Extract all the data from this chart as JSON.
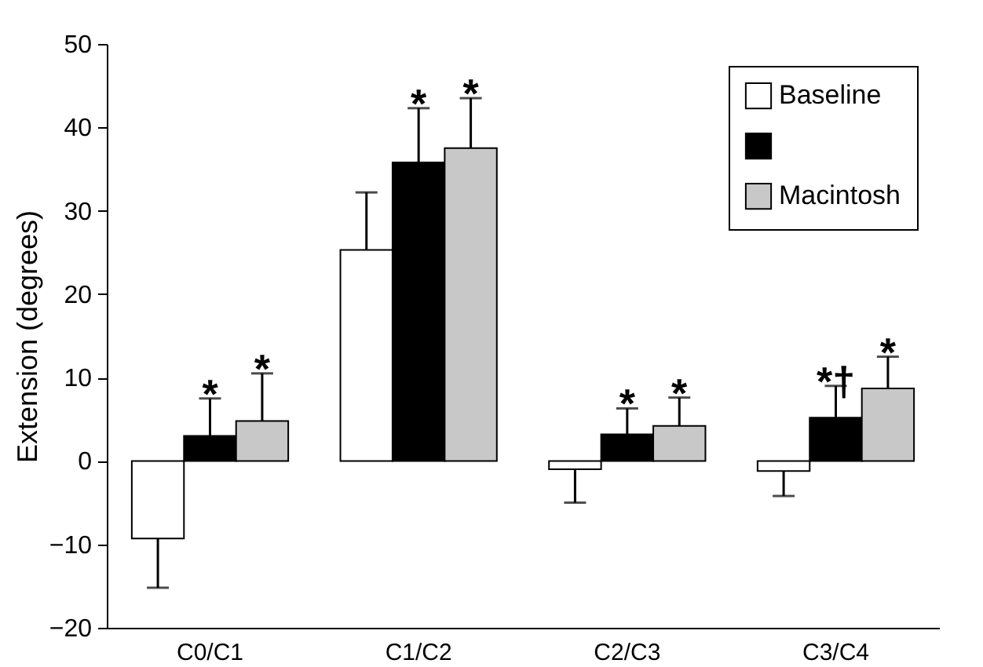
{
  "chart_data": {
    "type": "bar",
    "ylabel": "Extension (degrees)",
    "categories": [
      "C0/C1",
      "C1/C2",
      "C2/C3",
      "C3/C4"
    ],
    "series": [
      {
        "name": "Baseline",
        "color": "#ffffff",
        "values": [
          -9.3,
          25.3,
          -1,
          -1.2
        ],
        "errors": [
          [
            -15.2,
            -9.3
          ],
          [
            25.3,
            32.2
          ],
          [
            -5,
            -1
          ],
          [
            -4.2,
            -1.2
          ]
        ]
      },
      {
        "color": "#000000",
        "values": [
          3,
          35.8,
          3.2,
          5.2
        ],
        "errors": [
          [
            3,
            7.5
          ],
          [
            35.8,
            42.3
          ],
          [
            3.2,
            6.3
          ],
          [
            5.2,
            9
          ]
        ]
      },
      {
        "name": "Macintosh",
        "color": "#c8c8c8",
        "values": [
          4.8,
          37.5,
          4.2,
          8.7
        ],
        "errors": [
          [
            4.8,
            10.5
          ],
          [
            37.5,
            43.5
          ],
          [
            4.2,
            7.6
          ],
          [
            8.7,
            12.5
          ]
        ]
      }
    ],
    "ylim": [
      -20,
      50
    ],
    "yticks": [
      -20,
      -10,
      0,
      10,
      20,
      30,
      40,
      50
    ],
    "grid": false,
    "legend": "top right",
    "annotations": [
      {
        "text": "*",
        "x": "C0/C1",
        "y": 7.5
      },
      "*",
      {
        "text": "*",
        "x": "C1/C2",
        "y": 42.3
      },
      "*",
      {
        "text": "*",
        "x": "C2/C3",
        "y": 6.3
      },
      "*",
      {
        "text": "*†",
        "x": "C3/C4",
        "y": 9
      },
      "*"
    ]
  }
}
